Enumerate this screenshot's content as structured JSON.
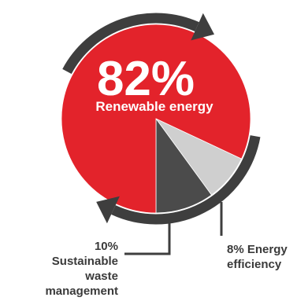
{
  "chart_data": {
    "type": "pie",
    "slices": [
      {
        "label": "Renewable energy",
        "value": 82,
        "display": "82%",
        "color": "#e3232b"
      },
      {
        "label": "Sustainable waste management",
        "value": 10,
        "display": "10%",
        "color": "#4b4b4b"
      },
      {
        "label": "Energy efficiency",
        "value": 8,
        "display": "8%",
        "color": "#cfcfcf"
      }
    ],
    "labels": {
      "big_percent": "82%",
      "big_caption": "Renewable energy",
      "waste_line1": "10%",
      "waste_line2": "Sustainable",
      "waste_line3": "waste",
      "waste_line4": "management",
      "eff_line1": "8% Energy",
      "eff_line2": "efficiency"
    },
    "colors": {
      "ring_arrows": "#3e3e3e",
      "leader_lines": "#3e3e3e"
    }
  }
}
